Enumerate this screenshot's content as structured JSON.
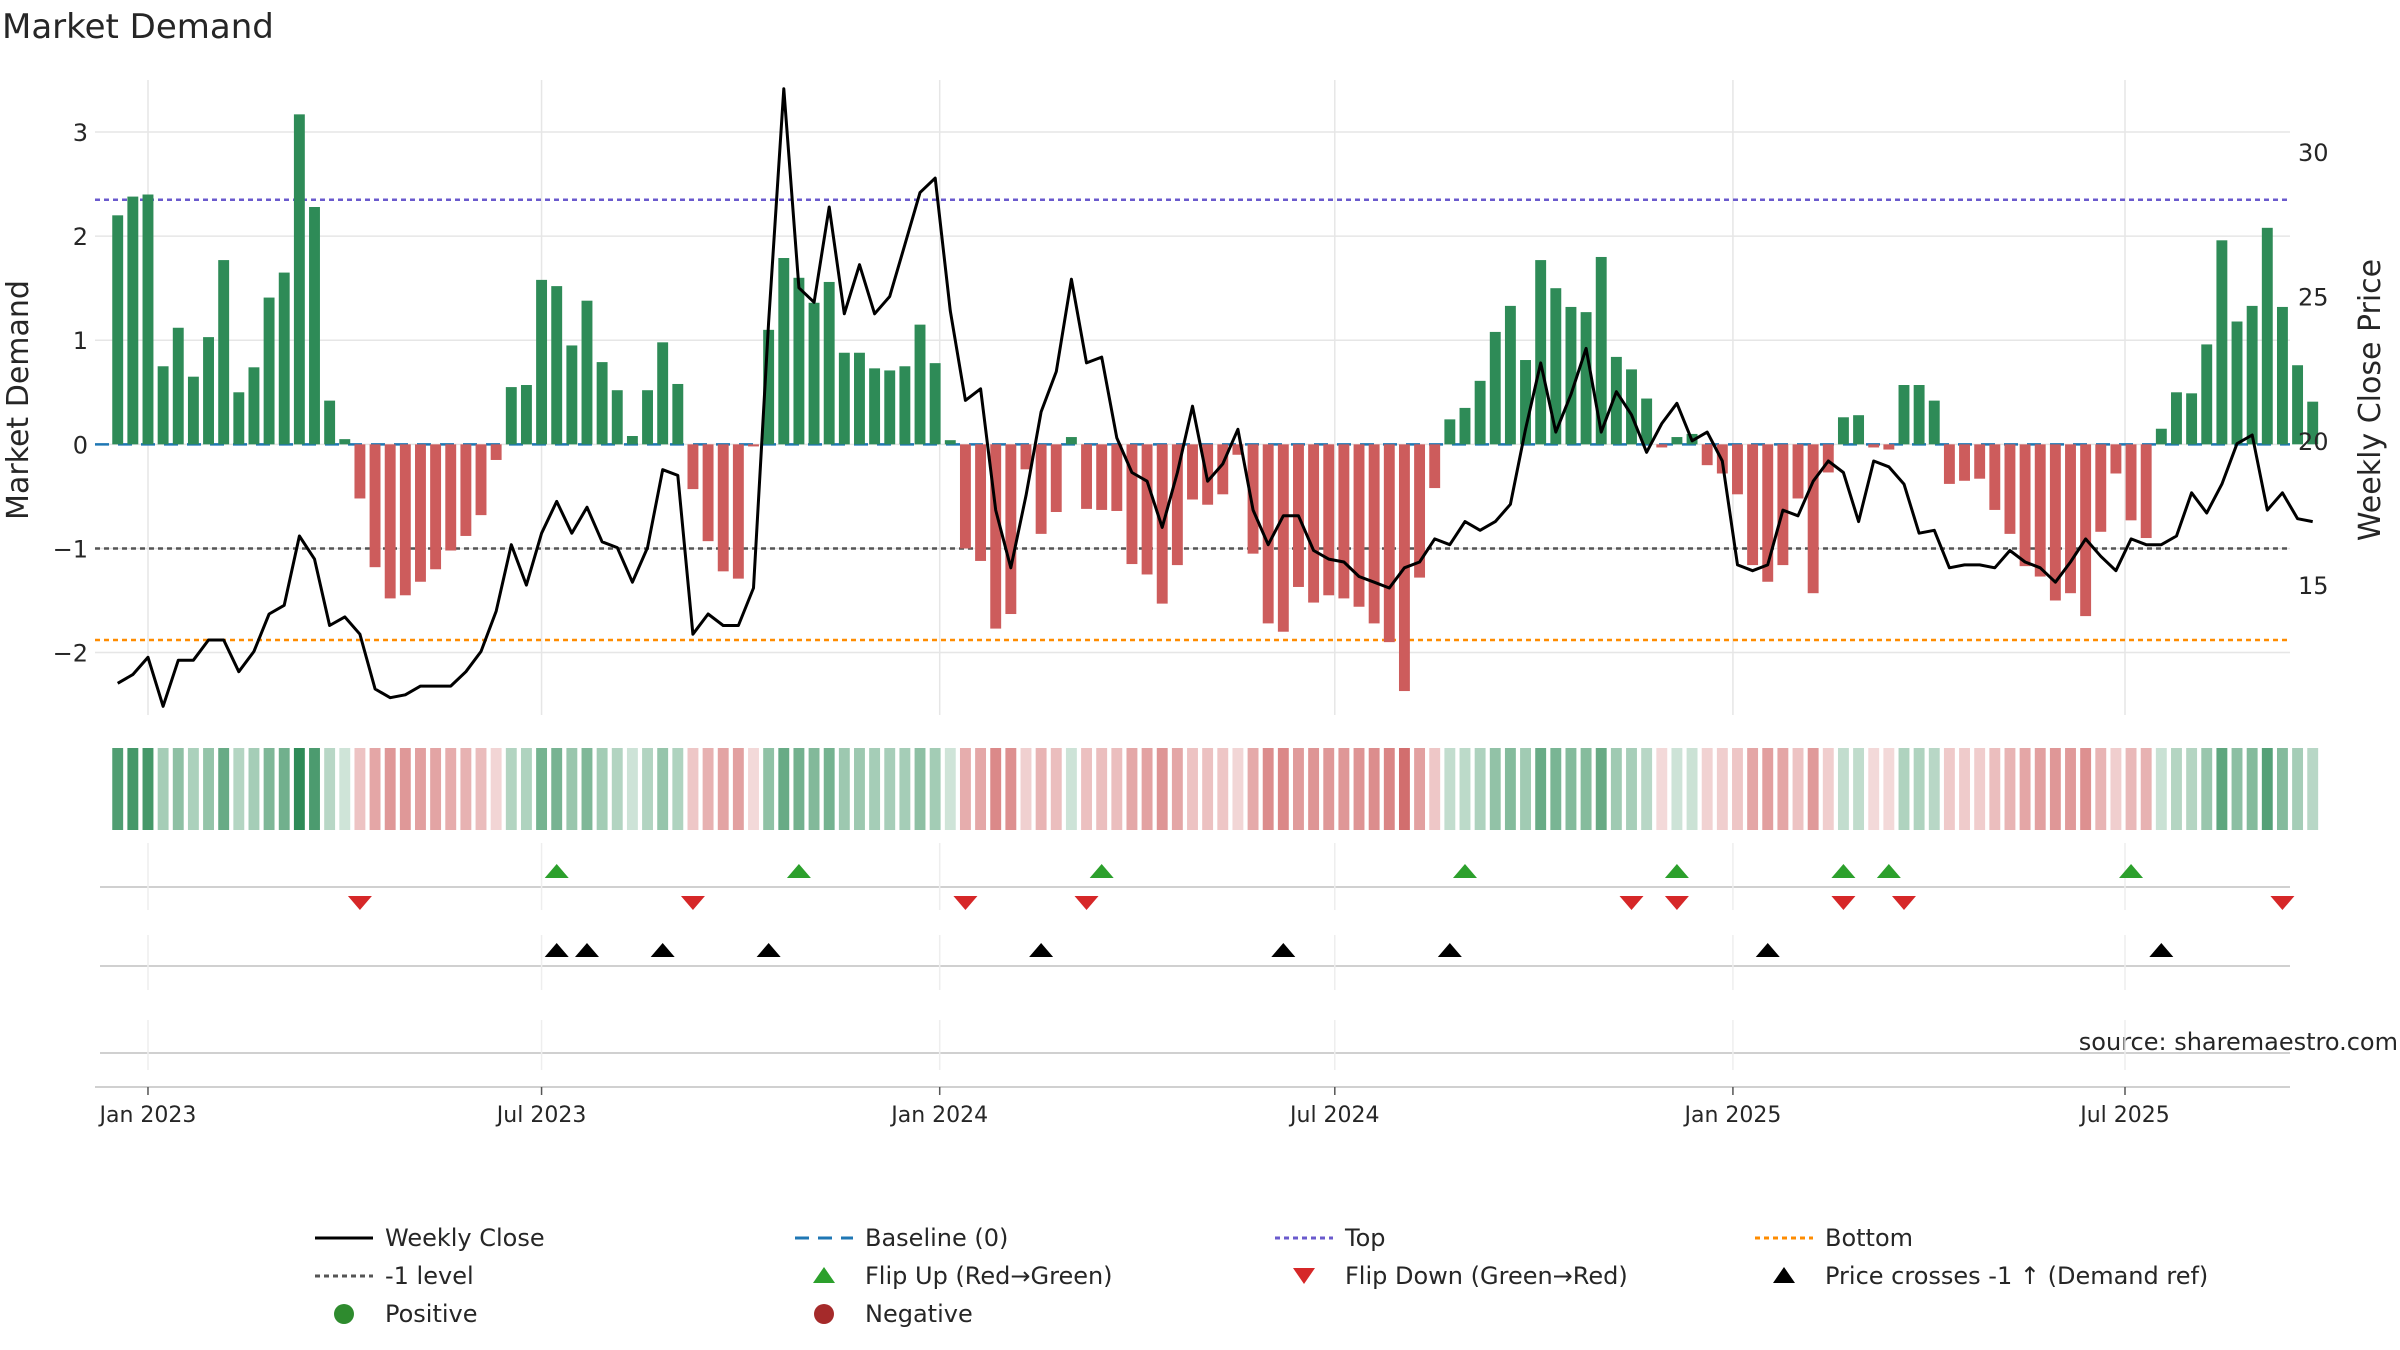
{
  "colors": {
    "positive": "#2e8b57",
    "negative": "#cd5c5c",
    "price": "#000000",
    "baseline": "#1f77b4",
    "top": "#6a5acd",
    "bottom": "#ff8c00",
    "minus_one": "#555555",
    "flip_up": "#2ca02c",
    "flip_down": "#d62728",
    "cross": "#000000",
    "grid": "#e6e6e6",
    "source": "#999999"
  },
  "chart_data": {
    "type": "bar",
    "title": "Market Demand",
    "ylabel_left": "Market Demand",
    "ylabel_right": "Weekly Close Price",
    "ylim_left": [
      -2.6,
      3.5
    ],
    "ylim_right": [
      10.5,
      32.5
    ],
    "yticks_left": [
      -2,
      -1,
      0,
      1,
      2,
      3
    ],
    "yticks_left_labels": [
      "−2",
      "−1",
      "0",
      "1",
      "2",
      "3"
    ],
    "yticks_right": [
      15,
      20,
      25,
      30
    ],
    "yticks_right_labels": [
      "15",
      "20",
      "25",
      "30"
    ],
    "xlim_weeks": [
      -3.5,
      141.5
    ],
    "xticks_weeks": [
      0,
      26,
      52.3,
      78.4,
      104.7,
      130.6
    ],
    "xtick_labels": [
      "Jan 2023",
      "Jul 2023",
      "Jan 2024",
      "Jul 2024",
      "Jan 2025",
      "Jul 2025"
    ],
    "reference_lines": {
      "top": 2.35,
      "bottom": -1.88,
      "minus_one": -1.0,
      "baseline": 0
    },
    "start_week": -2,
    "demand": [
      2.2,
      2.38,
      2.4,
      0.75,
      1.12,
      0.65,
      1.03,
      1.77,
      0.5,
      0.74,
      1.41,
      1.65,
      3.17,
      2.28,
      0.42,
      0.05,
      -0.52,
      -1.18,
      -1.48,
      -1.45,
      -1.32,
      -1.2,
      -1.02,
      -0.88,
      -0.68,
      -0.15,
      0.55,
      0.57,
      1.58,
      1.52,
      0.95,
      1.38,
      0.79,
      0.52,
      0.08,
      0.52,
      0.98,
      0.58,
      -0.43,
      -0.93,
      -1.22,
      -1.29,
      -0.02,
      1.1,
      1.79,
      1.6,
      1.36,
      1.56,
      0.88,
      0.88,
      0.73,
      0.71,
      0.75,
      1.15,
      0.78,
      0.04,
      -1.0,
      -1.12,
      -1.77,
      -1.63,
      -0.24,
      -0.86,
      -0.65,
      0.07,
      -0.62,
      -0.63,
      -0.64,
      -1.15,
      -1.25,
      -1.53,
      -1.16,
      -0.53,
      -0.58,
      -0.48,
      -0.1,
      -1.05,
      -1.72,
      -1.8,
      -1.37,
      -1.52,
      -1.45,
      -1.48,
      -1.56,
      -1.72,
      -1.9,
      -2.37,
      -1.28,
      -0.42,
      0.24,
      0.35,
      0.61,
      1.08,
      1.33,
      0.81,
      1.77,
      1.5,
      1.32,
      1.27,
      1.8,
      0.84,
      0.72,
      0.44,
      -0.03,
      0.07,
      0.1,
      -0.2,
      -0.28,
      -0.48,
      -1.16,
      -1.32,
      -1.16,
      -0.52,
      -1.43,
      -0.27,
      0.26,
      0.28,
      -0.03,
      -0.05,
      0.57,
      0.57,
      0.42,
      -0.38,
      -0.35,
      -0.33,
      -0.63,
      -0.86,
      -1.17,
      -1.27,
      -1.5,
      -1.43,
      -1.65,
      -0.84,
      -0.28,
      -0.73,
      -0.9,
      0.15,
      0.5,
      0.49,
      0.96,
      1.96,
      1.18,
      1.33,
      2.08,
      1.32,
      0.76,
      0.41
    ],
    "price": [
      11.6,
      11.9,
      12.5,
      10.8,
      12.4,
      12.4,
      13.1,
      13.1,
      12.0,
      12.7,
      14.0,
      14.3,
      16.7,
      15.9,
      13.6,
      13.9,
      13.3,
      11.4,
      11.1,
      11.2,
      11.5,
      11.5,
      11.5,
      12.0,
      12.7,
      14.1,
      16.4,
      15.0,
      16.8,
      17.9,
      16.8,
      17.7,
      16.5,
      16.3,
      15.1,
      16.3,
      19.0,
      18.8,
      13.3,
      14.0,
      13.6,
      13.6,
      14.9,
      24.1,
      32.2,
      25.3,
      24.8,
      28.1,
      24.4,
      26.1,
      24.4,
      25.0,
      26.8,
      28.6,
      29.1,
      24.5,
      21.4,
      21.8,
      17.6,
      15.6,
      18.1,
      21.0,
      22.4,
      25.6,
      22.7,
      22.9,
      20.1,
      18.9,
      18.6,
      17.0,
      18.9,
      21.2,
      18.6,
      19.2,
      20.4,
      17.6,
      16.4,
      17.4,
      17.4,
      16.2,
      15.9,
      15.8,
      15.3,
      15.1,
      14.9,
      15.6,
      15.8,
      16.6,
      16.4,
      17.2,
      16.9,
      17.2,
      17.8,
      20.4,
      22.7,
      20.3,
      21.6,
      23.2,
      20.3,
      21.7,
      20.9,
      19.6,
      20.6,
      21.3,
      20.0,
      20.3,
      19.3,
      15.7,
      15.5,
      15.7,
      17.6,
      17.4,
      18.6,
      19.3,
      18.9,
      17.2,
      19.3,
      19.1,
      18.5,
      16.8,
      16.9,
      15.6,
      15.7,
      15.7,
      15.6,
      16.2,
      15.8,
      15.6,
      15.1,
      15.8,
      16.6,
      16.0,
      15.5,
      16.6,
      16.4,
      16.4,
      16.7,
      18.2,
      17.5,
      18.5,
      19.9,
      20.2,
      17.6,
      18.2,
      17.3,
      17.2
    ],
    "flip_up_weeks": [
      27,
      43,
      63,
      87,
      101,
      112,
      115,
      131
    ],
    "flip_down_weeks": [
      14,
      36,
      54,
      62,
      98,
      101,
      112,
      116,
      141
    ],
    "price_cross_weeks": [
      27,
      29,
      34,
      41,
      59,
      75,
      86,
      107,
      133
    ],
    "legend": [
      {
        "key": "weekly_close",
        "label": "Weekly Close"
      },
      {
        "key": "baseline",
        "label": "Baseline (0)"
      },
      {
        "key": "top",
        "label": "Top"
      },
      {
        "key": "bottom",
        "label": "Bottom"
      },
      {
        "key": "minus_one",
        "label": "-1 level"
      },
      {
        "key": "flip_up",
        "label": "Flip Up (Red→Green)"
      },
      {
        "key": "flip_down",
        "label": "Flip Down (Green→Red)"
      },
      {
        "key": "price_cross",
        "label": "Price crosses -1 ↑ (Demand ref)"
      },
      {
        "key": "positive",
        "label": "Positive"
      },
      {
        "key": "negative",
        "label": "Negative"
      }
    ],
    "source_note": "source: sharemaestro.com"
  }
}
